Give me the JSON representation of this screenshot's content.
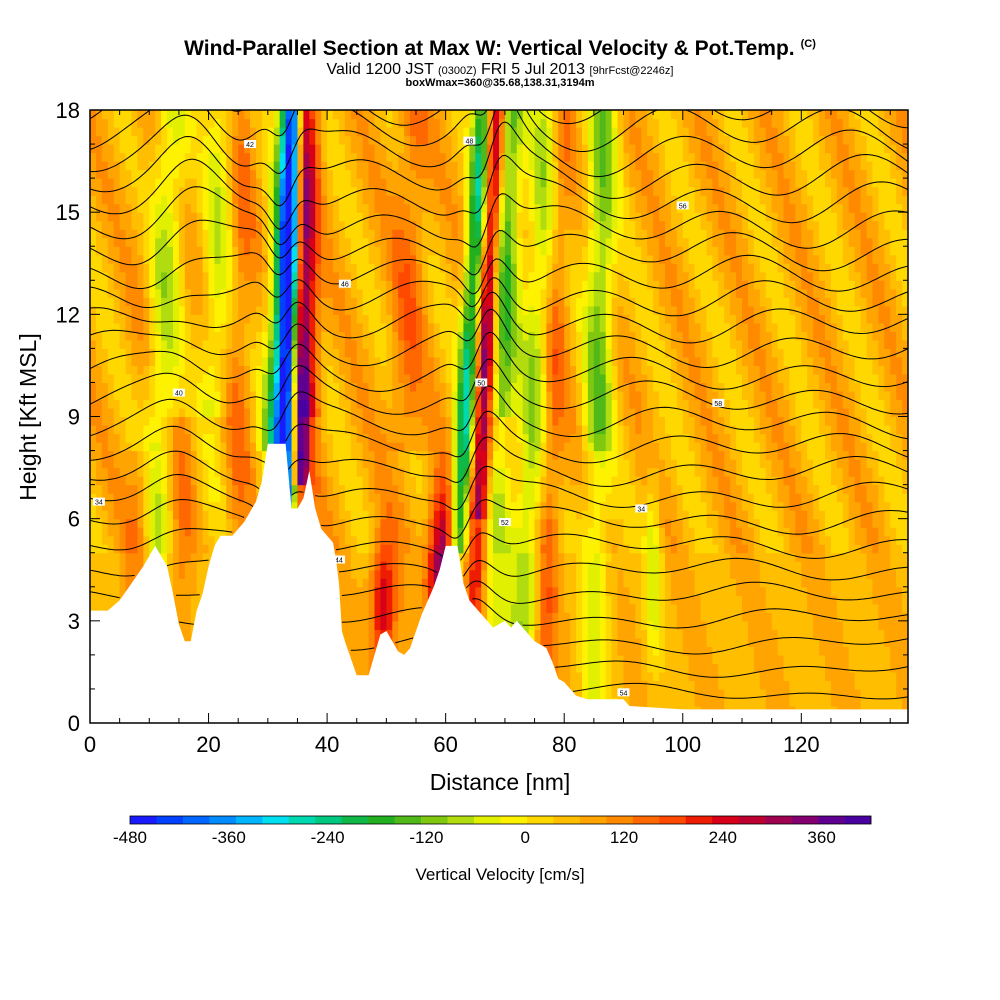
{
  "titles": {
    "main": "Wind-Parallel Section at Max W: Vertical Velocity & Pot.Temp.",
    "copyright": "(C)",
    "valid_prefix": "Valid 1200 JST",
    "valid_utc": "(0300Z)",
    "valid_date": "FRI 5 Jul 2013",
    "forecast": "[9hrFcst@2246z]",
    "boxmax": "boxWmax=360@35.68,138.31,3194m"
  },
  "chart_data": {
    "type": "heatmap",
    "xlabel": "Distance [nm]",
    "ylabel": "Height [Kft MSL]",
    "xlim": [
      0,
      138
    ],
    "ylim": [
      0,
      18
    ],
    "x_ticks": [
      "0",
      "20",
      "40",
      "60",
      "80",
      "100",
      "120"
    ],
    "y_ticks": [
      "0",
      "3",
      "6",
      "9",
      "12",
      "15",
      "18"
    ],
    "colorbar": {
      "label": "Vertical Velocity [cm/s]",
      "tick_labels": [
        "-480",
        "-360",
        "-240",
        "-120",
        "0",
        "120",
        "240",
        "360"
      ],
      "min": -480,
      "max": 420,
      "step": 30,
      "colors": [
        "#1a1aff",
        "#0040ff",
        "#0066ff",
        "#008cff",
        "#00b4ff",
        "#00e0f0",
        "#00d8b0",
        "#00c880",
        "#10b848",
        "#22b020",
        "#50b818",
        "#80c810",
        "#b0dc10",
        "#e0f000",
        "#fff200",
        "#ffd800",
        "#ffbe00",
        "#ffa400",
        "#ff8a00",
        "#ff6800",
        "#ff4800",
        "#ee1c00",
        "#d80018",
        "#be0030",
        "#a00050",
        "#840070",
        "#600090",
        "#4a00a0"
      ]
    },
    "terrain_kft": [
      [
        0,
        3.3
      ],
      [
        3,
        3.3
      ],
      [
        5,
        3.6
      ],
      [
        7,
        4.1
      ],
      [
        9,
        4.6
      ],
      [
        11,
        5.2
      ],
      [
        13,
        4.6
      ],
      [
        14,
        3.8
      ],
      [
        15,
        2.9
      ],
      [
        16,
        2.4
      ],
      [
        17,
        2.4
      ],
      [
        18,
        3.3
      ],
      [
        19,
        3.8
      ],
      [
        20,
        4.6
      ],
      [
        21,
        5.2
      ],
      [
        22,
        5.5
      ],
      [
        24,
        5.5
      ],
      [
        25,
        5.7
      ],
      [
        26,
        5.9
      ],
      [
        27,
        6.2
      ],
      [
        28,
        6.5
      ],
      [
        29,
        7.1
      ],
      [
        30,
        8.2
      ],
      [
        33,
        8.2
      ],
      [
        34,
        6.3
      ],
      [
        35,
        6.3
      ],
      [
        36,
        6.6
      ],
      [
        37,
        7.4
      ],
      [
        38,
        6.3
      ],
      [
        39,
        5.7
      ],
      [
        40,
        5.5
      ],
      [
        41,
        5.3
      ],
      [
        41.5,
        4.8
      ],
      [
        42,
        4.1
      ],
      [
        42.5,
        2.7
      ],
      [
        43,
        2.4
      ],
      [
        44,
        1.9
      ],
      [
        45,
        1.4
      ],
      [
        47,
        1.4
      ],
      [
        48,
        2.0
      ],
      [
        49,
        2.6
      ],
      [
        50,
        2.7
      ],
      [
        51,
        2.4
      ],
      [
        52,
        2.1
      ],
      [
        53,
        2.0
      ],
      [
        54,
        2.2
      ],
      [
        55,
        2.7
      ],
      [
        56,
        3.2
      ],
      [
        57,
        3.6
      ],
      [
        58,
        4.0
      ],
      [
        59,
        4.5
      ],
      [
        60,
        5.2
      ],
      [
        62,
        5.2
      ],
      [
        63,
        4.1
      ],
      [
        64,
        3.6
      ],
      [
        65,
        3.4
      ],
      [
        66,
        3.2
      ],
      [
        67,
        3.0
      ],
      [
        68,
        2.8
      ],
      [
        70,
        3.0
      ],
      [
        71,
        2.8
      ],
      [
        72,
        3.0
      ],
      [
        73,
        2.8
      ],
      [
        74,
        2.6
      ],
      [
        75,
        2.4
      ],
      [
        77,
        2.2
      ],
      [
        78,
        1.8
      ],
      [
        79,
        1.3
      ],
      [
        80,
        1.2
      ],
      [
        81,
        1.0
      ],
      [
        82,
        0.8
      ],
      [
        84,
        0.7
      ],
      [
        90,
        0.7
      ],
      [
        91,
        0.5
      ],
      [
        100,
        0.4
      ],
      [
        138,
        0.4
      ]
    ],
    "contour_labels": [
      "34",
      "40",
      "42",
      "44",
      "46",
      "48",
      "50",
      "52",
      "54",
      "56",
      "58"
    ],
    "features": [
      {
        "type": "downdraft",
        "x_nm": 32,
        "w_cms": -480
      },
      {
        "type": "updraft",
        "x_nm": 35,
        "w_cms": 360
      },
      {
        "type": "updraft",
        "x_nm": 60,
        "w_cms": 300
      },
      {
        "type": "downdraft",
        "x_nm": 64,
        "w_cms": -300
      },
      {
        "type": "updraft",
        "x_nm": 66,
        "w_cms": 280
      }
    ]
  }
}
